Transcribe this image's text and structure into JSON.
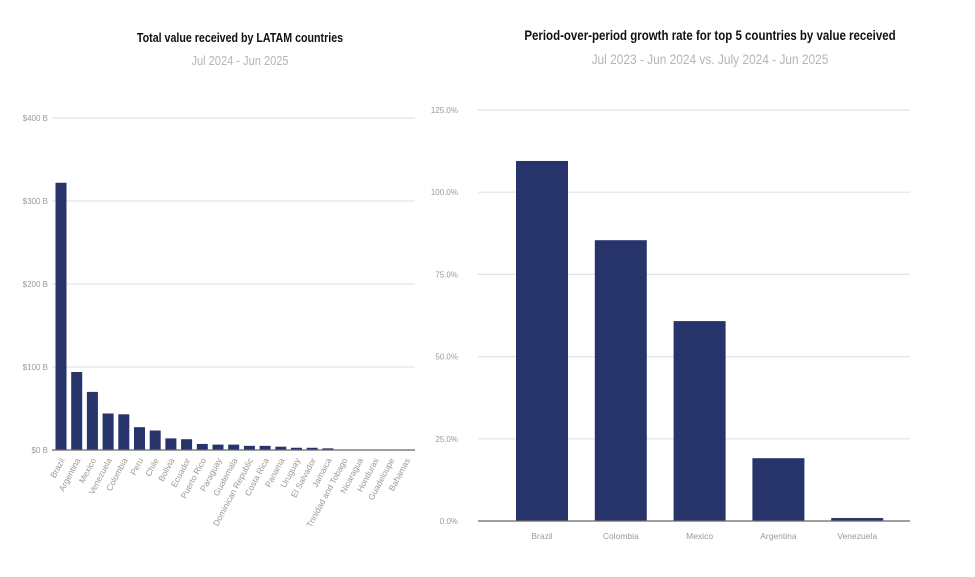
{
  "chart_data": [
    {
      "type": "bar",
      "title": "Total value received by LATAM countries",
      "subtitle": "Jul 2024 - Jun 2025",
      "xlabel": "",
      "ylabel": "",
      "ylim": [
        0,
        400
      ],
      "yticks": [
        0,
        100,
        200,
        300,
        400
      ],
      "ytick_labels": [
        "$0 B",
        "$100 B",
        "$200 B",
        "$300 B",
        "$400 B"
      ],
      "grid": true,
      "categories": [
        "Brazil",
        "Argentina",
        "Mexico",
        "Venezuela",
        "Colombia",
        "Peru",
        "Chile",
        "Bolivia",
        "Ecuador",
        "Puerto Rico",
        "Paraguay",
        "Guatemala",
        "Dominican Republic",
        "Costa Rica",
        "Panama",
        "Uruguay",
        "El Salvador",
        "Jamaica",
        "Trinidad and Tobago",
        "Nicaragua",
        "Honduras",
        "Guadeloupe",
        "Bahamas"
      ],
      "values": [
        322,
        94,
        70,
        44,
        43,
        27.5,
        23.5,
        14,
        13,
        7.3,
        6.5,
        6.5,
        5,
        5,
        4,
        2.7,
        2.7,
        2,
        0.5,
        0.3,
        0.3,
        0.1,
        0.1
      ],
      "color": "#27346c"
    },
    {
      "type": "bar",
      "title": "Period-over-period growth rate for top 5 countries by value received",
      "subtitle": "Jul 2023 - Jun 2024 vs. July 2024 - Jun 2025",
      "xlabel": "",
      "ylabel": "",
      "ylim": [
        0,
        125
      ],
      "yticks": [
        0,
        25,
        50,
        75,
        100,
        125
      ],
      "ytick_labels": [
        "0.0%",
        "25.0%",
        "50.0%",
        "75.0%",
        "100.0%",
        "125.0%"
      ],
      "grid": true,
      "categories": [
        "Brazil",
        "Colombia",
        "Mexico",
        "Argentina",
        "Venezuela"
      ],
      "values": [
        109.5,
        85.4,
        60.8,
        19.1,
        0.9
      ],
      "color": "#27346c"
    }
  ]
}
